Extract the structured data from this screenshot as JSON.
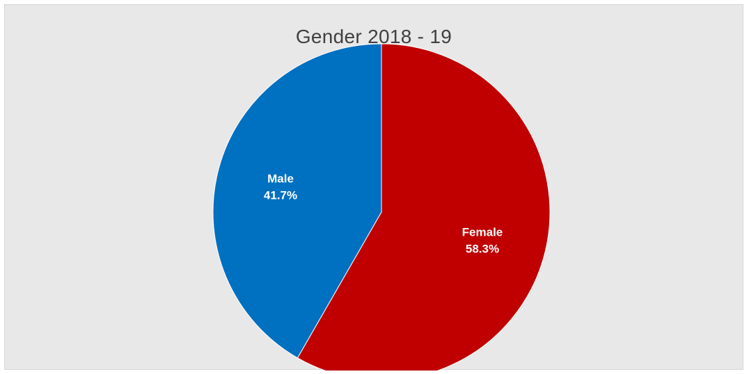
{
  "chart_data": {
    "type": "pie",
    "title": "Gender 2018 - 19",
    "slices": [
      {
        "label": "Female",
        "value": 58.3,
        "display": "58.3%",
        "color": "#c00000"
      },
      {
        "label": "Male",
        "value": 41.7,
        "display": "41.7%",
        "color": "#0070c0"
      }
    ],
    "start_angle_deg": 0,
    "direction": "clockwise",
    "data_labels": "inside",
    "legend": "none"
  },
  "colors": {
    "background": "#e8e8e8",
    "title_text": "#404040",
    "label_text": "#ffffff"
  }
}
